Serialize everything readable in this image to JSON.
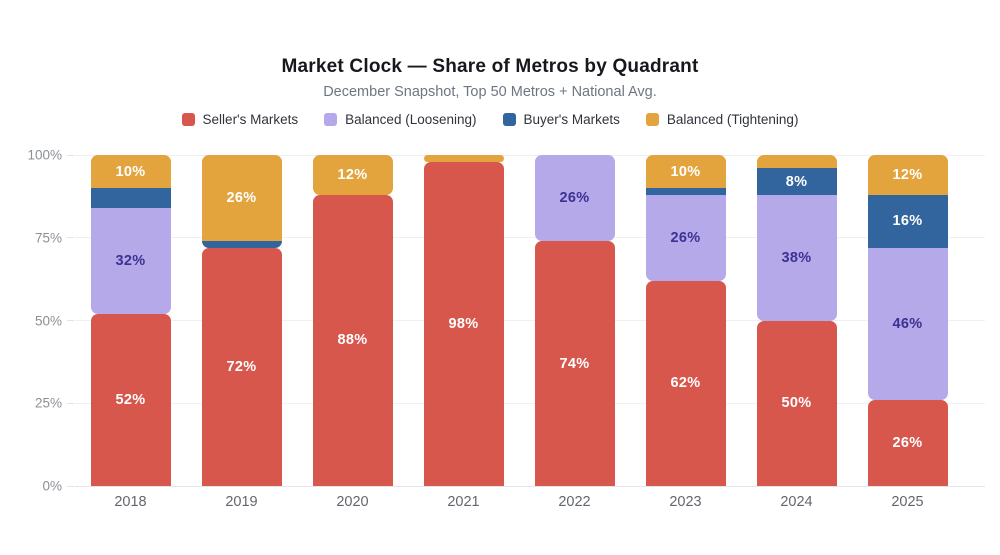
{
  "header": {
    "title": "Market Clock — Share of Metros by Quadrant",
    "subtitle": "December Snapshot, Top 50 Metros + National Avg."
  },
  "chart_data": {
    "type": "bar",
    "variant": "stacked-100",
    "title": "Market Clock — Share of Metros by Quadrant",
    "subtitle": "December Snapshot, Top 50 Metros + National Avg.",
    "categories": [
      "2018",
      "2019",
      "2020",
      "2021",
      "2022",
      "2023",
      "2024",
      "2025"
    ],
    "series": [
      {
        "name": "Seller's Markets",
        "color": "#d8574d",
        "label_color": "#ffffff",
        "values": [
          52,
          72,
          88,
          98,
          74,
          62,
          50,
          26
        ]
      },
      {
        "name": "Balanced (Loosening)",
        "color": "#b5a9e9",
        "label_color": "#3d3193",
        "values": [
          32,
          0,
          0,
          0,
          26,
          26,
          38,
          46
        ]
      },
      {
        "name": "Buyer's Markets",
        "color": "#32649d",
        "label_color": "#ffffff",
        "values": [
          6,
          2,
          0,
          0,
          0,
          2,
          8,
          16
        ]
      },
      {
        "name": "Balanced (Tightening)",
        "color": "#e3a33d",
        "label_color": "#ffffff",
        "values": [
          10,
          26,
          12,
          2,
          0,
          10,
          4,
          12
        ]
      }
    ],
    "yticks": [
      {
        "value": 0,
        "label": "0%"
      },
      {
        "value": 25,
        "label": "25%"
      },
      {
        "value": 50,
        "label": "50%"
      },
      {
        "value": 75,
        "label": "75%"
      },
      {
        "value": 100,
        "label": "100%"
      }
    ],
    "ylim": [
      0,
      100
    ],
    "grid": true,
    "legend_position": "top",
    "data_label_suffix": "%",
    "min_label_value": 8
  }
}
